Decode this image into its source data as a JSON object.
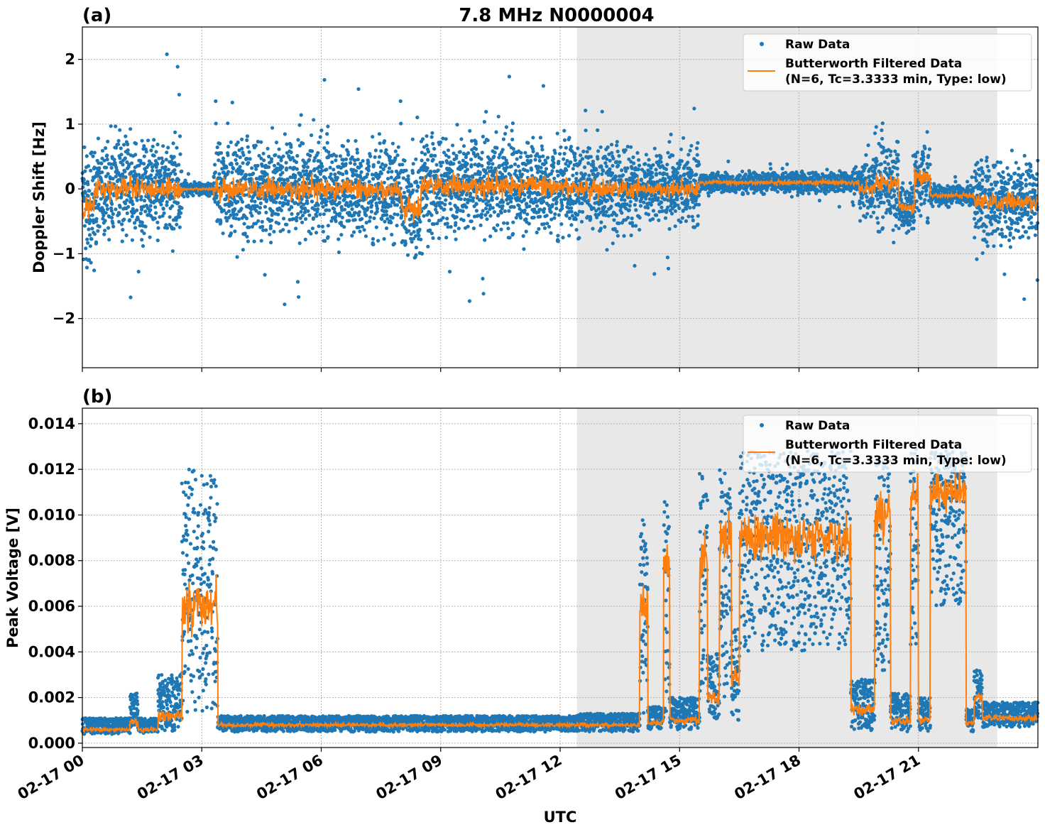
{
  "chart_data": [
    {
      "type": "scatter",
      "panel_label": "(a)",
      "title": "7.8 MHz N0000004",
      "ylabel": "Doppler Shift [Hz]",
      "xlabel": "",
      "xlim_hours": [
        0,
        24
      ],
      "ylim": [
        -2.76,
        2.5
      ],
      "yticks": [
        2,
        1,
        0,
        -1,
        -2
      ],
      "ytick_labels": [
        "2",
        "1",
        "0",
        "−1",
        "−2"
      ],
      "grid": true,
      "legend_position": "top-right",
      "shaded_region_hours": [
        12.42,
        22.98
      ],
      "series": [
        {
          "name": "Raw Data",
          "type": "scatter",
          "color": "#1f77b4",
          "segments_note_columns": [
            "start_h",
            "end_h",
            "center",
            "half_width"
          ],
          "segments": [
            [
              0,
              0.3,
              -0.3,
              1.2
            ],
            [
              0.3,
              2.5,
              0,
              1.0
            ],
            [
              2.5,
              3.3,
              0,
              0.12
            ],
            [
              3.3,
              8,
              0,
              0.95
            ],
            [
              8,
              8.5,
              -0.3,
              1.0
            ],
            [
              8.5,
              12.4,
              0.05,
              0.95
            ],
            [
              12.4,
              14,
              0,
              0.85
            ],
            [
              14,
              14.1,
              0,
              0.3
            ],
            [
              14.1,
              15.5,
              0,
              0.7
            ],
            [
              15.5,
              19.5,
              0.1,
              0.2
            ],
            [
              19.5,
              19.9,
              0,
              0.6
            ],
            [
              19.9,
              20.5,
              0.1,
              0.9
            ],
            [
              20.5,
              20.9,
              -0.3,
              0.5
            ],
            [
              20.9,
              21.3,
              0.2,
              0.8
            ],
            [
              21.3,
              22.4,
              -0.1,
              0.2
            ],
            [
              22.4,
              24,
              -0.2,
              0.8
            ]
          ]
        },
        {
          "name": "Butterworth Filtered Data",
          "name_line2": "(N=6, Tc=3.3333 min, Type: low)",
          "type": "line",
          "color": "#ff7f0e"
        }
      ]
    },
    {
      "type": "scatter",
      "panel_label": "(b)",
      "ylabel": "Peak Voltage [V]",
      "xlabel": "UTC",
      "xlim_hours": [
        0,
        24
      ],
      "ylim": [
        -0.00019,
        0.01468
      ],
      "yticks": [
        0,
        0.002,
        0.004,
        0.006,
        0.008,
        0.01,
        0.012,
        0.014
      ],
      "ytick_labels": [
        "0.000",
        "0.002",
        "0.004",
        "0.006",
        "0.008",
        "0.010",
        "0.012",
        "0.014"
      ],
      "xticks_hours": [
        0,
        3,
        6,
        9,
        12,
        15,
        18,
        21
      ],
      "xtick_labels": [
        "02-17 00",
        "02-17 03",
        "02-17 06",
        "02-17 09",
        "02-17 12",
        "02-17 15",
        "02-17 18",
        "02-17 21"
      ],
      "grid": true,
      "legend_position": "top-right",
      "shaded_region_hours": [
        12.42,
        22.98
      ],
      "series": [
        {
          "name": "Raw Data",
          "type": "scatter",
          "color": "#1f77b4",
          "segments_note_columns": [
            "start_h",
            "end_h",
            "low",
            "high",
            "filtered"
          ],
          "segments": [
            [
              0,
              1.2,
              0.0004,
              0.0011,
              0.0006
            ],
            [
              1.2,
              1.4,
              0.0005,
              0.0022,
              0.0009
            ],
            [
              1.4,
              1.9,
              0.0004,
              0.0011,
              0.0006
            ],
            [
              1.9,
              2.5,
              0.0005,
              0.003,
              0.0012
            ],
            [
              2.5,
              3.4,
              0.001,
              0.012,
              0.006
            ],
            [
              3.4,
              12.4,
              0.0005,
              0.0012,
              0.0008
            ],
            [
              12.4,
              14.0,
              0.0005,
              0.0013,
              0.0008
            ],
            [
              14.0,
              14.2,
              0.001,
              0.01,
              0.006
            ],
            [
              14.2,
              14.6,
              0.0006,
              0.0016,
              0.0009
            ],
            [
              14.6,
              14.75,
              0.001,
              0.011,
              0.008
            ],
            [
              14.75,
              15.5,
              0.0006,
              0.002,
              0.001
            ],
            [
              15.5,
              15.7,
              0.002,
              0.012,
              0.008
            ],
            [
              15.7,
              16.0,
              0.001,
              0.004,
              0.002
            ],
            [
              16.0,
              16.3,
              0.002,
              0.012,
              0.009
            ],
            [
              16.3,
              16.5,
              0.001,
              0.005,
              0.003
            ],
            [
              16.5,
              19.3,
              0.004,
              0.0128,
              0.009
            ],
            [
              19.3,
              19.9,
              0.0005,
              0.0028,
              0.0015
            ],
            [
              19.9,
              20.3,
              0.003,
              0.0125,
              0.01
            ],
            [
              20.3,
              20.8,
              0.0005,
              0.0022,
              0.001
            ],
            [
              20.8,
              21.0,
              0.004,
              0.013,
              0.011
            ],
            [
              21.0,
              21.3,
              0.0005,
              0.002,
              0.001
            ],
            [
              21.3,
              22.2,
              0.006,
              0.0128,
              0.011
            ],
            [
              22.2,
              22.4,
              0.0005,
              0.0015,
              0.0009
            ],
            [
              22.4,
              22.6,
              0.001,
              0.0032,
              0.002
            ],
            [
              22.6,
              24,
              0.0007,
              0.0018,
              0.0011
            ]
          ]
        },
        {
          "name": "Butterworth Filtered Data",
          "name_line2": "(N=6, Tc=3.3333 min, Type: low)",
          "type": "line",
          "color": "#ff7f0e"
        }
      ]
    }
  ]
}
